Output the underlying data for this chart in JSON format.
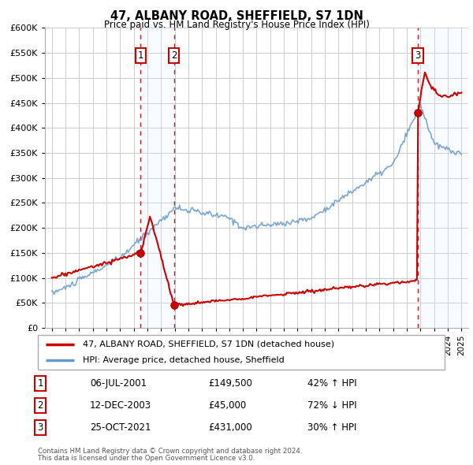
{
  "title": "47, ALBANY ROAD, SHEFFIELD, S7 1DN",
  "subtitle": "Price paid vs. HM Land Registry's House Price Index (HPI)",
  "ylim": [
    0,
    600000
  ],
  "yticks": [
    0,
    50000,
    100000,
    150000,
    200000,
    250000,
    300000,
    350000,
    400000,
    450000,
    500000,
    550000,
    600000
  ],
  "xlim_start": 1994.5,
  "xlim_end": 2025.5,
  "sale_dates": [
    2001.51,
    2003.95,
    2021.81
  ],
  "sale_prices": [
    149500,
    45000,
    431000
  ],
  "sale_labels": [
    "1",
    "2",
    "3"
  ],
  "sale_info": [
    {
      "label": "1",
      "date": "06-JUL-2001",
      "price": "£149,500",
      "hpi": "42% ↑ HPI"
    },
    {
      "label": "2",
      "date": "12-DEC-2003",
      "price": "£45,000",
      "hpi": "72% ↓ HPI"
    },
    {
      "label": "3",
      "date": "25-OCT-2021",
      "price": "£431,000",
      "hpi": "30% ↑ HPI"
    }
  ],
  "legend_line1": "47, ALBANY ROAD, SHEFFIELD, S7 1DN (detached house)",
  "legend_line2": "HPI: Average price, detached house, Sheffield",
  "footer1": "Contains HM Land Registry data © Crown copyright and database right 2024.",
  "footer2": "This data is licensed under the Open Government Licence v3.0.",
  "price_line_color": "#cc0000",
  "hpi_line_color": "#6699cc",
  "sale_marker_color": "#cc0000",
  "shade_color": "#ddeeff",
  "vline_color": "#cc0000",
  "grid_color": "#cccccc",
  "background_color": "#ffffff"
}
